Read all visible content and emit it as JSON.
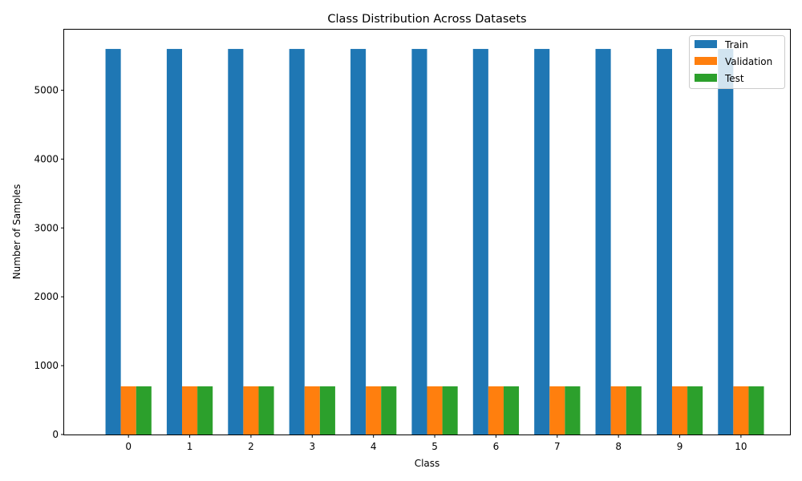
{
  "chart_data": {
    "type": "bar",
    "title": "Class Distribution Across Datasets",
    "xlabel": "Class",
    "ylabel": "Number of Samples",
    "categories": [
      "0",
      "1",
      "2",
      "3",
      "4",
      "5",
      "6",
      "7",
      "8",
      "9",
      "10"
    ],
    "series": [
      {
        "name": "Train",
        "color": "#1f77b4",
        "values": [
          5600,
          5600,
          5600,
          5600,
          5600,
          5600,
          5600,
          5600,
          5600,
          5600,
          5600
        ]
      },
      {
        "name": "Validation",
        "color": "#ff7f0e",
        "values": [
          700,
          700,
          700,
          700,
          700,
          700,
          700,
          700,
          700,
          700,
          700
        ]
      },
      {
        "name": "Test",
        "color": "#2ca02c",
        "values": [
          700,
          700,
          700,
          700,
          700,
          700,
          700,
          700,
          700,
          700,
          700
        ]
      }
    ],
    "ylim": [
      0,
      5880
    ],
    "yticks": [
      0,
      1000,
      2000,
      3000,
      4000,
      5000
    ],
    "legend_position": "top-right",
    "grid": false
  }
}
